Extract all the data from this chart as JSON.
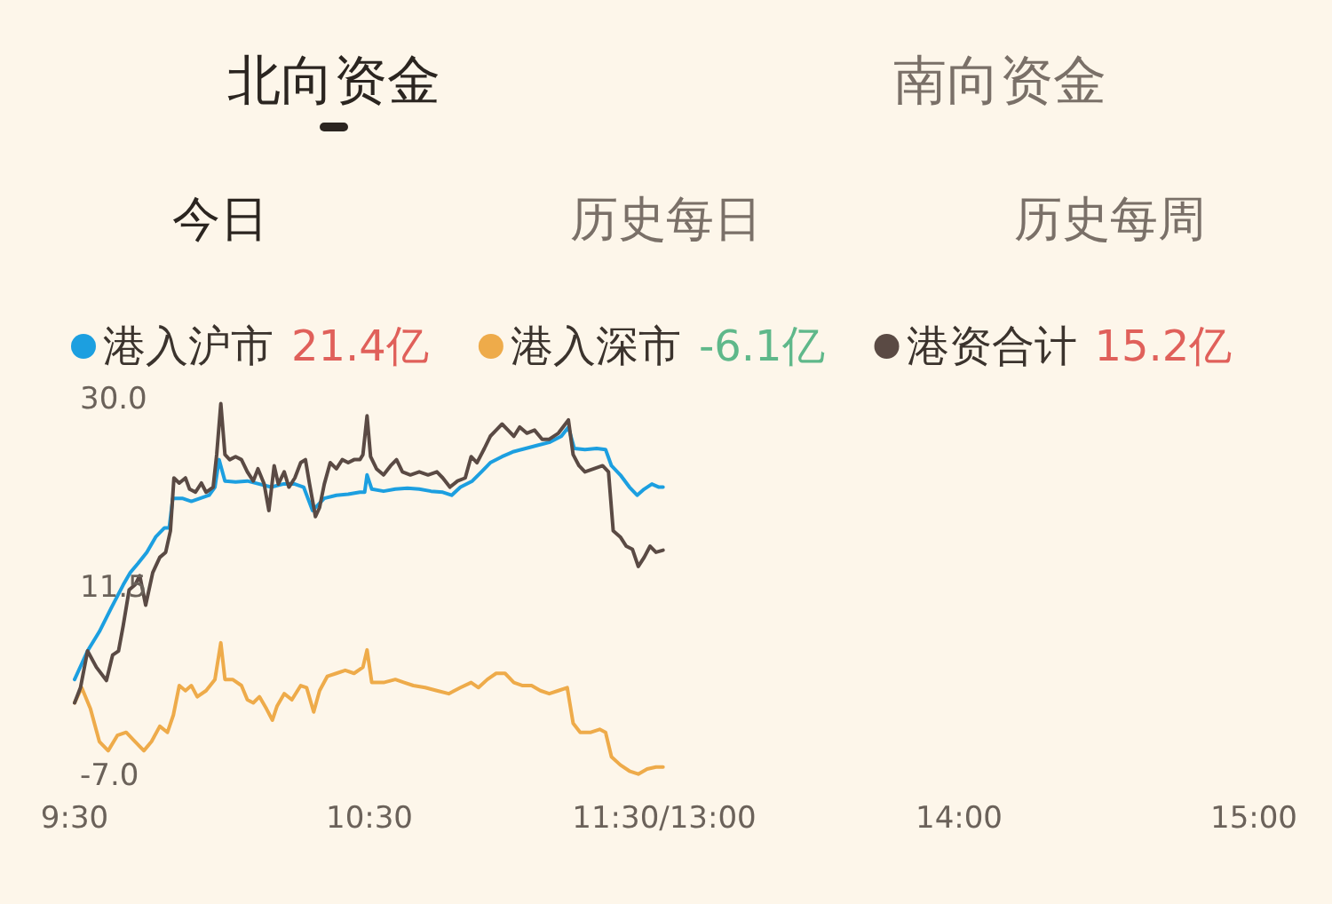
{
  "chart_data": {
    "type": "line",
    "title": "北向资金",
    "subtitle": "今日",
    "annotations": [
      "南向资金",
      "历史每日",
      "历史每周",
      "21.4亿",
      "-6.1亿",
      "15.2亿",
      "14:00",
      "15:00"
    ],
    "xlim": [
      9.5,
      11.5
    ],
    "xticks": [
      {
        "value": 9.5,
        "label": "9:30"
      },
      {
        "value": 10.5,
        "label": "10:30"
      },
      {
        "value": 11.5,
        "label": "11:30/13:00"
      }
    ],
    "ylim": [
      -7,
      30
    ],
    "yticks": [
      {
        "value": 30,
        "label": "30.0"
      },
      11.5,
      {
        "value": -7,
        "label": "-7.0"
      }
    ],
    "legend": "top",
    "series": [
      {
        "name": "港入沪市",
        "color": "#1c9fe0",
        "x": [
          9.5,
          9.544,
          9.584,
          9.624,
          9.665,
          9.689,
          9.715,
          9.745,
          9.775,
          9.805,
          9.821,
          9.833,
          9.865,
          9.896,
          9.926,
          9.956,
          9.976,
          9.99,
          10.01,
          10.046,
          10.086,
          10.127,
          10.167,
          10.207,
          10.247,
          10.277,
          10.307,
          10.327,
          10.347,
          10.388,
          10.428,
          10.468,
          10.484,
          10.492,
          10.508,
          10.548,
          10.588,
          10.629,
          10.669,
          10.709,
          10.749,
          10.779,
          10.809,
          10.849,
          10.88,
          10.91,
          10.95,
          10.99,
          11.03,
          11.07,
          11.11,
          11.151,
          11.175,
          11.195,
          11.231,
          11.271,
          11.301,
          11.321,
          11.351,
          11.382,
          11.408,
          11.432,
          11.458,
          11.482,
          11.496
        ],
        "values": [
          2.5,
          5.3,
          7.2,
          9.5,
          11.8,
          13.0,
          13.9,
          15.0,
          16.5,
          17.4,
          17.4,
          20.3,
          20.3,
          20.0,
          20.3,
          20.6,
          21.4,
          24.1,
          22.0,
          21.9,
          22.0,
          21.7,
          21.4,
          21.7,
          21.7,
          21.4,
          19.1,
          19.7,
          20.3,
          20.6,
          20.7,
          20.9,
          20.9,
          22.6,
          21.2,
          21.0,
          21.2,
          21.3,
          21.2,
          21.0,
          20.9,
          20.6,
          21.4,
          22.0,
          22.9,
          23.8,
          24.4,
          24.9,
          25.2,
          25.5,
          25.8,
          26.4,
          27.3,
          25.2,
          25.1,
          25.2,
          25.1,
          23.5,
          22.6,
          21.4,
          20.6,
          21.2,
          21.7,
          21.4,
          21.4
        ]
      },
      {
        "name": "港入深市",
        "color": "#eeab4a",
        "x": [
          9.5,
          9.524,
          9.554,
          9.584,
          9.614,
          9.645,
          9.675,
          9.705,
          9.735,
          9.761,
          9.789,
          9.815,
          9.835,
          9.855,
          9.876,
          9.896,
          9.916,
          9.946,
          9.976,
          9.996,
          10.01,
          10.036,
          10.066,
          10.086,
          10.106,
          10.127,
          10.151,
          10.171,
          10.187,
          10.211,
          10.237,
          10.267,
          10.287,
          10.311,
          10.331,
          10.357,
          10.388,
          10.418,
          10.448,
          10.478,
          10.492,
          10.508,
          10.548,
          10.588,
          10.618,
          10.649,
          10.689,
          10.729,
          10.769,
          10.809,
          10.845,
          10.87,
          10.9,
          10.93,
          10.96,
          10.99,
          11.02,
          11.05,
          11.08,
          11.11,
          11.141,
          11.171,
          11.191,
          11.215,
          11.251,
          11.281,
          11.301,
          11.321,
          11.351,
          11.382,
          11.412,
          11.442,
          11.472,
          11.496
        ],
        "values": [
          0.2,
          1.7,
          -0.4,
          -3.6,
          -4.5,
          -3.0,
          -2.7,
          -3.6,
          -4.5,
          -3.6,
          -2.1,
          -2.7,
          -1.0,
          1.9,
          1.4,
          1.9,
          0.8,
          1.4,
          2.5,
          6.1,
          2.5,
          2.5,
          1.9,
          0.5,
          0.2,
          0.8,
          -0.4,
          -1.5,
          -0.1,
          1.1,
          0.5,
          1.9,
          1.7,
          -0.7,
          1.4,
          2.8,
          3.1,
          3.4,
          3.1,
          3.7,
          5.4,
          2.2,
          2.2,
          2.5,
          2.2,
          1.9,
          1.7,
          1.4,
          1.1,
          1.7,
          2.2,
          1.7,
          2.5,
          3.1,
          3.1,
          2.2,
          1.9,
          1.9,
          1.4,
          1.1,
          1.4,
          1.7,
          -1.8,
          -2.7,
          -2.7,
          -2.4,
          -2.7,
          -5.1,
          -5.9,
          -6.5,
          -6.8,
          -6.3,
          -6.1,
          -6.1
        ]
      },
      {
        "name": "港资合计",
        "color": "#5a4a44",
        "x": [
          9.5,
          9.52,
          9.544,
          9.574,
          9.608,
          9.629,
          9.649,
          9.665,
          9.685,
          9.705,
          9.721,
          9.741,
          9.765,
          9.789,
          9.809,
          9.825,
          9.837,
          9.855,
          9.876,
          9.89,
          9.91,
          9.93,
          9.946,
          9.97,
          9.982,
          9.996,
          10.01,
          10.026,
          10.046,
          10.066,
          10.086,
          10.106,
          10.122,
          10.143,
          10.159,
          10.177,
          10.191,
          10.211,
          10.227,
          10.247,
          10.267,
          10.283,
          10.297,
          10.317,
          10.331,
          10.347,
          10.367,
          10.388,
          10.408,
          10.428,
          10.448,
          10.468,
          10.478,
          10.492,
          10.504,
          10.524,
          10.548,
          10.572,
          10.592,
          10.612,
          10.639,
          10.669,
          10.699,
          10.729,
          10.749,
          10.773,
          10.799,
          10.825,
          10.845,
          10.865,
          10.89,
          10.91,
          10.93,
          10.95,
          10.97,
          10.99,
          11.01,
          11.034,
          11.06,
          11.086,
          11.11,
          11.141,
          11.175,
          11.191,
          11.211,
          11.231,
          11.261,
          11.291,
          11.311,
          11.327,
          11.351,
          11.371,
          11.392,
          11.412,
          11.432,
          11.452,
          11.472,
          11.496
        ],
        "values": [
          0.2,
          1.7,
          5.3,
          3.7,
          2.4,
          4.9,
          5.3,
          7.8,
          11.3,
          11.8,
          12.7,
          9.8,
          13.0,
          14.5,
          15.0,
          17.1,
          22.3,
          21.8,
          22.3,
          21.2,
          20.9,
          21.8,
          20.9,
          21.4,
          24.6,
          29.6,
          24.6,
          24.1,
          24.4,
          24.1,
          22.9,
          22.0,
          23.2,
          21.7,
          19.1,
          23.5,
          21.7,
          22.9,
          21.4,
          22.3,
          23.8,
          24.1,
          21.7,
          18.5,
          19.4,
          21.7,
          23.8,
          23.2,
          24.1,
          23.8,
          24.1,
          24.1,
          24.6,
          28.4,
          24.4,
          23.2,
          22.6,
          23.5,
          24.1,
          22.9,
          22.6,
          22.9,
          22.6,
          22.9,
          22.3,
          21.4,
          22.0,
          22.3,
          24.4,
          23.8,
          25.2,
          26.4,
          27.0,
          27.6,
          27.0,
          26.4,
          27.3,
          26.7,
          27.0,
          26.1,
          26.1,
          26.7,
          28.0,
          24.6,
          23.5,
          22.9,
          23.2,
          23.5,
          22.9,
          17.1,
          16.5,
          15.6,
          15.3,
          13.6,
          14.5,
          15.6,
          15.0,
          15.2
        ]
      }
    ]
  }
}
